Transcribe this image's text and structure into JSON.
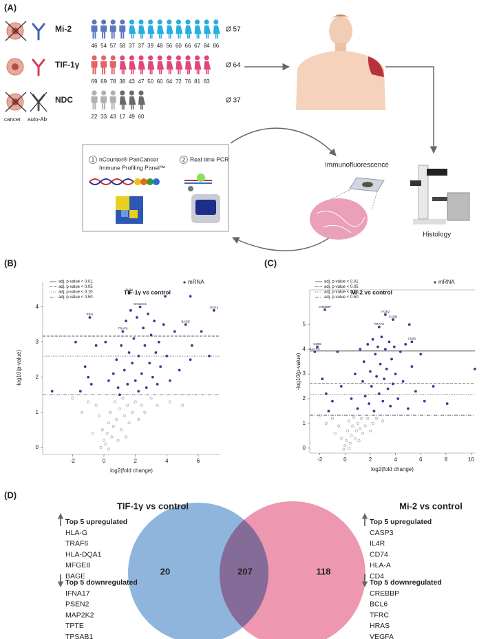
{
  "panel_a": {
    "label": "(A)",
    "groups": [
      {
        "name": "Mi-2",
        "ages": [
          46,
          54,
          57,
          58,
          37,
          37,
          39,
          48,
          56,
          60,
          66,
          67,
          84,
          86
        ],
        "mean": "Ø 57"
      },
      {
        "name": "TIF-1γ",
        "ages": [
          69,
          69,
          78,
          38,
          43,
          47,
          50,
          60,
          64,
          72,
          76,
          81,
          83
        ],
        "mean": "Ø 64"
      },
      {
        "name": "NDC",
        "ages": [
          22,
          33,
          43,
          17,
          49,
          60
        ],
        "mean": "Ø 37"
      }
    ],
    "icon_labels": [
      "cancer",
      "auto-Ab"
    ],
    "methods": [
      {
        "number": 1,
        "lines": [
          "nCounter® PanCancer",
          "Immune Profiling Panel™"
        ]
      },
      {
        "number": 2,
        "lines": [
          "Real time PCR"
        ]
      }
    ],
    "immunofluorescence": "Immunofluorescence",
    "histology": "Histology"
  },
  "panel_labels": [
    "(B)",
    "(C)"
  ],
  "chart_data": [
    {
      "type": "scatter",
      "title": "TIF-1γ vs control",
      "x_label": "log2(fold change)",
      "y_label": "-log10(p-value)",
      "xlim": [
        -3.9,
        7.4
      ],
      "xticks": [
        -2,
        0,
        2,
        4,
        6
      ],
      "ylim": [
        -0.2,
        4.7
      ],
      "yticks": [
        0,
        1,
        2,
        3,
        4
      ],
      "legend": [
        {
          "label": "adj. p-value < 0.01",
          "style": "solid"
        },
        {
          "label": "adj. p-value < 0.05",
          "style": "dashed"
        },
        {
          "label": "adj. p-value < 0.10",
          "style": "dotted"
        },
        {
          "label": "adj. p-value < 0.50",
          "style": "dashdot"
        }
      ],
      "threshold_lines": [
        {
          "value": 3.17,
          "style": "dashed"
        },
        {
          "value": 2.6,
          "style": "dotted"
        },
        {
          "value": 1.5,
          "style": "dashdot"
        }
      ],
      "series": [
        {
          "name": "mRNA",
          "color": "#3a3a96",
          "x": [
            -0.9,
            -1.8,
            -1.2,
            -1.0,
            -0.8,
            -1.5,
            -3.3,
            -0.5,
            0.3,
            0.6,
            0.8,
            0.9,
            1.1,
            1.2,
            1.3,
            1.4,
            1.5,
            1.6,
            1.7,
            1.8,
            1.9,
            2.0,
            2.1,
            2.2,
            2.3,
            2.4,
            2.5,
            2.6,
            2.7,
            2.8,
            2.9,
            3.0,
            3.1,
            3.2,
            3.3,
            3.4,
            3.5,
            3.6,
            3.8,
            4.0,
            4.2,
            4.5,
            4.8,
            5.2,
            5.5,
            5.6,
            6.2,
            6.7,
            1.6,
            3.9,
            5.5,
            7.0,
            0.1,
            2.2,
            1.0
          ],
          "values": [
            3.7,
            3.0,
            2.3,
            2.0,
            1.8,
            1.6,
            1.6,
            2.9,
            1.9,
            2.1,
            2.5,
            1.7,
            2.9,
            3.3,
            2.2,
            3.6,
            1.8,
            2.7,
            3.9,
            2.4,
            3.1,
            1.9,
            3.7,
            2.6,
            4.0,
            2.1,
            3.4,
            2.9,
            1.7,
            3.8,
            2.4,
            3.2,
            2.0,
            3.6,
            2.7,
            1.8,
            3.0,
            2.3,
            3.5,
            2.6,
            1.9,
            3.3,
            2.2,
            3.5,
            2.5,
            2.9,
            3.3,
            2.6,
            4.4,
            4.3,
            4.3,
            3.9,
            3.0,
            1.6,
            1.5
          ]
        },
        {
          "color": "#9a9a9a",
          "x": [
            -0.5,
            -0.3,
            -0.1,
            0.0,
            0.1,
            0.2,
            0.3,
            0.4,
            0.5,
            0.6,
            0.7,
            0.8,
            0.9,
            1.0,
            1.1,
            1.2,
            1.3,
            1.4,
            1.5,
            1.6,
            1.8,
            2.0,
            2.2,
            2.4,
            2.6,
            3.0,
            3.4,
            -1.0,
            -1.4,
            -0.7,
            -0.2,
            0.3,
            4.2,
            5.0,
            -2.0
          ],
          "values": [
            1.2,
            0.9,
            0.5,
            0.2,
            0.1,
            0.4,
            0.7,
            1.0,
            0.3,
            0.6,
            1.3,
            0.8,
            0.2,
            1.1,
            0.5,
            1.4,
            0.9,
            0.3,
            1.2,
            0.7,
            1.0,
            1.3,
            0.8,
            1.2,
            1.0,
            1.4,
            1.2,
            1.3,
            1.0,
            0.4,
            0.0,
            -0.05,
            1.3,
            1.2,
            1.4
          ]
        }
      ],
      "annotations": [
        {
          "text": "TLR4",
          "x": 1.6,
          "y": 4.4
        },
        {
          "text": "SIGLEC1",
          "x": 2.3,
          "y": 4.0
        },
        {
          "text": "TRAF6",
          "x": 1.2,
          "y": 3.3
        },
        {
          "text": "PIN1",
          "x": -0.9,
          "y": 3.7
        },
        {
          "text": "BAGE",
          "x": 5.2,
          "y": 3.5
        },
        {
          "text": "ISG15",
          "x": 7.0,
          "y": 3.9
        }
      ]
    },
    {
      "type": "scatter",
      "title": "Mi-2 vs control",
      "x_label": "log2(fold change)",
      "y_label": "-log10(p-value)",
      "xlim": [
        -2.8,
        10.3
      ],
      "xticks": [
        -2,
        0,
        2,
        4,
        6,
        8,
        10
      ],
      "ylim": [
        -0.2,
        6.4
      ],
      "yticks": [
        0,
        1,
        2,
        3,
        4,
        5
      ],
      "legend": [
        {
          "label": "adj. p-value < 0.01",
          "style": "solid"
        },
        {
          "label": "adj. p-value < 0.05",
          "style": "dashed"
        },
        {
          "label": "adj. p-value < 0.10",
          "style": "dotted"
        },
        {
          "label": "adj. p-value < 0.50",
          "style": "dashdot"
        }
      ],
      "threshold_lines": [
        {
          "value": 3.93,
          "style": "solid"
        },
        {
          "value": 2.62,
          "style": "dashed"
        },
        {
          "value": 2.18,
          "style": "dotted"
        },
        {
          "value": 1.33,
          "style": "dashdot"
        }
      ],
      "series": [
        {
          "name": "mRNA",
          "color": "#3a3a96",
          "x": [
            -2.2,
            -1.8,
            -1.5,
            -1.0,
            -1.3,
            -0.6,
            -0.3,
            0.5,
            0.8,
            1.0,
            1.2,
            1.4,
            1.5,
            1.6,
            1.8,
            1.9,
            2.0,
            2.1,
            2.2,
            2.3,
            2.4,
            2.5,
            2.6,
            2.7,
            2.8,
            2.9,
            3.0,
            3.1,
            3.2,
            3.3,
            3.4,
            3.5,
            3.6,
            3.7,
            3.8,
            3.9,
            4.0,
            4.2,
            4.4,
            4.6,
            4.8,
            5.0,
            5.3,
            5.6,
            6.0,
            6.3,
            7.0,
            8.1,
            10.3,
            3.2,
            3.8,
            2.7,
            5.1,
            5.3,
            -1.6,
            -2.4
          ],
          "values": [
            4.1,
            2.8,
            2.2,
            1.9,
            1.5,
            3.9,
            2.5,
            2.0,
            3.0,
            1.6,
            4.0,
            2.7,
            3.5,
            2.1,
            4.2,
            1.8,
            3.1,
            2.5,
            4.4,
            1.5,
            3.8,
            2.9,
            4.1,
            2.2,
            3.4,
            4.5,
            1.9,
            2.8,
            4.0,
            3.2,
            2.4,
            4.3,
            1.7,
            3.6,
            2.6,
            4.1,
            3.0,
            2.0,
            3.9,
            2.7,
            4.2,
            1.6,
            3.3,
            2.3,
            3.8,
            1.9,
            2.5,
            1.8,
            3.2,
            5.4,
            5.2,
            4.9,
            5.0,
            4.3,
            5.6,
            3.9
          ]
        },
        {
          "color": "#9a9a9a",
          "x": [
            -1.0,
            -0.5,
            -0.3,
            0.0,
            0.1,
            0.2,
            0.3,
            0.4,
            0.5,
            0.6,
            0.7,
            0.8,
            0.9,
            1.0,
            1.1,
            1.2,
            1.3,
            1.4,
            1.6,
            1.8,
            2.0,
            2.2,
            2.5,
            -0.8,
            -1.5,
            -0.1,
            0.3,
            3.0,
            -2.0
          ],
          "values": [
            1.2,
            0.9,
            0.4,
            0.1,
            0.3,
            0.7,
            1.1,
            0.2,
            0.5,
            0.9,
            1.25,
            0.4,
            0.7,
            1.0,
            0.3,
            0.8,
            1.2,
            0.6,
            0.9,
            1.2,
            0.7,
            1.0,
            1.2,
            0.6,
            1.0,
            -0.05,
            0.0,
            1.1,
            1.3
          ]
        }
      ],
      "annotations": [
        {
          "text": "CREBBP",
          "x": -1.6,
          "y": 5.6
        },
        {
          "text": "ITGB2",
          "x": 3.2,
          "y": 5.4
        },
        {
          "text": "C1QB",
          "x": 3.8,
          "y": 5.2
        },
        {
          "text": "TRAF3",
          "x": 2.7,
          "y": 4.9
        },
        {
          "text": "CD80",
          "x": 5.3,
          "y": 4.3
        },
        {
          "text": "CD55",
          "x": -2.2,
          "y": 4.1
        },
        {
          "text": "IL17RA",
          "x": -2.4,
          "y": 3.9
        }
      ]
    }
  ],
  "panel_d": {
    "label": "(D)",
    "left_title": "TIF-1γ vs control",
    "right_title": "Mi-2 vs control",
    "counts": [
      20,
      207,
      118
    ],
    "left": {
      "up_title": "Top 5 upregulated",
      "up": [
        "HLA-G",
        "TRAF6",
        "HLA-DQA1",
        "MFGE8",
        "BAGE"
      ],
      "down_title": "Top 5 downregulated",
      "down": [
        "IFNA17",
        "PSEN2",
        "MAP2K2",
        "TPTE",
        "TPSAB1"
      ]
    },
    "right": {
      "up_title": "Top 5 upregulated",
      "up": [
        "CASP3",
        "IL4R",
        "CD74",
        "HLA-A",
        "CD4"
      ],
      "down_title": "Top 5 downregulated",
      "down": [
        "CREBBP",
        "BCL6",
        "TFRC",
        "HRAS",
        "VEGFA"
      ]
    }
  }
}
